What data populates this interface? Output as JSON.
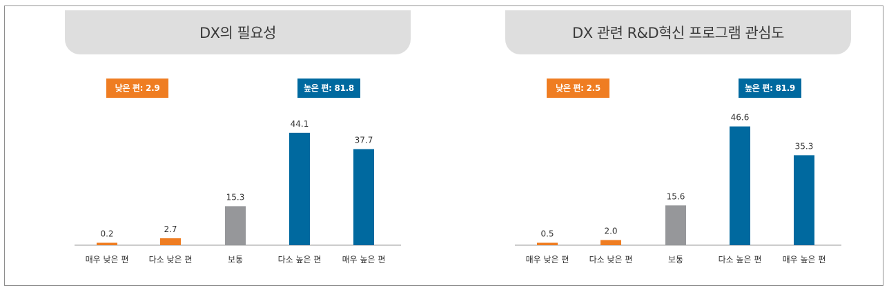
{
  "colors": {
    "low": "#ef7d22",
    "neutral": "#96979a",
    "high": "#00699f",
    "axis": "#9a9a9a"
  },
  "chart_data": [
    {
      "type": "bar",
      "title": "DX의 필요성",
      "categories": [
        "매우 낮은 편",
        "다소 낮은 편",
        "보통",
        "다소 높은 편",
        "매우 높은 편"
      ],
      "values": [
        0.2,
        2.7,
        15.3,
        44.1,
        37.7
      ],
      "value_labels": [
        "0.2",
        "2.7",
        "15.3",
        "44.1",
        "37.7"
      ],
      "bar_groups": [
        "low",
        "low",
        "neutral",
        "high",
        "high"
      ],
      "badges": {
        "low": "낮은 편: 2.9",
        "high": "높은 편: 81.8"
      },
      "ylim": [
        0,
        50
      ]
    },
    {
      "type": "bar",
      "title": "DX 관련 R&D혁신 프로그램 관심도",
      "categories": [
        "매우 낮은 편",
        "다소 낮은 편",
        "보통",
        "다소 높은 편",
        "매우 높은 편"
      ],
      "values": [
        0.5,
        2.0,
        15.6,
        46.6,
        35.3
      ],
      "value_labels": [
        "0.5",
        "2.0",
        "15.6",
        "46.6",
        "35.3"
      ],
      "bar_groups": [
        "low",
        "low",
        "neutral",
        "high",
        "high"
      ],
      "badges": {
        "low": "낮은 편: 2.5",
        "high": "높은 편: 81.9"
      },
      "ylim": [
        0,
        50
      ]
    }
  ]
}
